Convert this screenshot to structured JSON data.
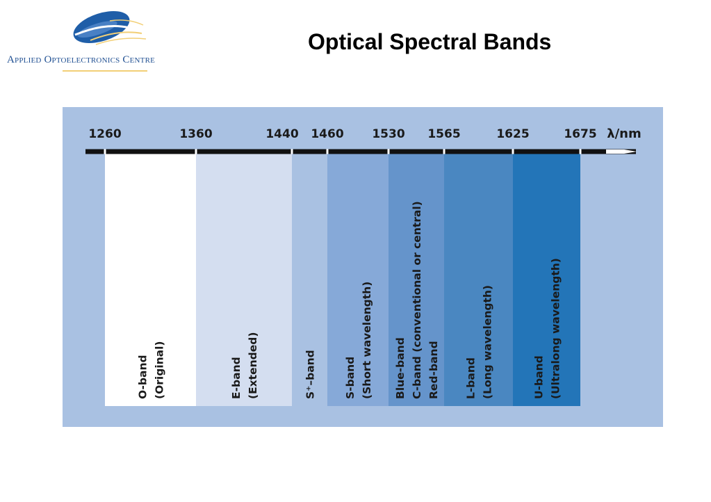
{
  "header": {
    "title": "Optical Spectral Bands",
    "logo_text": "Applied Optoelectronics Centre"
  },
  "diagram": {
    "axis_label": "λ/nm",
    "ticks": [
      "1260",
      "1360",
      "1440",
      "1460",
      "1530",
      "1565",
      "1625",
      "1675"
    ],
    "bands": [
      {
        "lines": [
          "O-band",
          "(Original)"
        ],
        "from": 1260,
        "to": 1360,
        "color": "#ffffff"
      },
      {
        "lines": [
          "E-band",
          "(Extended)"
        ],
        "from": 1360,
        "to": 1440,
        "color": "#d4def0"
      },
      {
        "lines": [
          "S⁺–band"
        ],
        "from": 1440,
        "to": 1460,
        "color": "#a9c1e2"
      },
      {
        "lines": [
          "S-band",
          "(Short wavelength)"
        ],
        "from": 1460,
        "to": 1530,
        "color": "#86a9d8"
      },
      {
        "lines": [
          "Blue-band",
          "C-band (conventional or central)",
          "Red-band"
        ],
        "from": 1530,
        "to": 1565,
        "color": "#6594cb"
      },
      {
        "lines": [
          "L-band",
          "(Long wavelength)"
        ],
        "from": 1565,
        "to": 1625,
        "color": "#4a87c1"
      },
      {
        "lines": [
          "U-band",
          "(Ultralong wavelength)"
        ],
        "from": 1625,
        "to": 1675,
        "color": "#2375b8"
      }
    ],
    "background_color": "#a9c1e2",
    "axis_color": "#111111"
  }
}
